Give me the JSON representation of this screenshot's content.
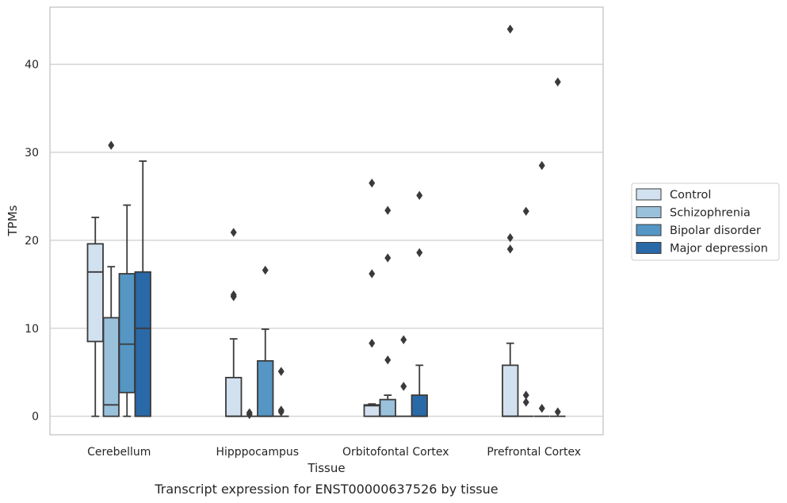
{
  "caption": "Transcript expression for ENST00000637526 by tissue",
  "chart_data": {
    "type": "box",
    "title": "",
    "xlabel": "Tissue",
    "ylabel": "TPMs",
    "ylim": [
      -2.1,
      46.5
    ],
    "yticks": [
      0,
      10,
      20,
      30,
      40
    ],
    "grid": true,
    "legend_position": "right",
    "categories": [
      "Cerebellum",
      "Hipppocampus",
      "Orbitofontal Cortex",
      "Prefrontal Cortex"
    ],
    "series": [
      {
        "name": "Control",
        "color": "#d1e1f0",
        "boxes": [
          {
            "whislo": 0,
            "q1": 8.5,
            "med": 16.4,
            "q3": 19.6,
            "whishi": 22.6,
            "fliers": []
          },
          {
            "whislo": 0,
            "q1": 0,
            "med": 0,
            "q3": 4.4,
            "whishi": 8.8,
            "fliers": [
              13.6,
              13.8,
              20.9
            ]
          },
          {
            "whislo": 0,
            "q1": 0,
            "med": 1.2,
            "q3": 1.3,
            "whishi": 1.4,
            "fliers": [
              8.3,
              16.2,
              26.5
            ]
          },
          {
            "whislo": 0,
            "q1": 0,
            "med": 0,
            "q3": 5.8,
            "whishi": 8.3,
            "fliers": [
              19.0,
              20.3,
              44.0
            ]
          }
        ]
      },
      {
        "name": "Schizophrenia",
        "color": "#9ac1dc",
        "boxes": [
          {
            "whislo": 0,
            "q1": 0,
            "med": 1.3,
            "q3": 11.2,
            "whishi": 17.0,
            "fliers": [
              30.8
            ]
          },
          {
            "whislo": 0,
            "q1": 0,
            "med": 0,
            "q3": 0,
            "whishi": 0,
            "fliers": [
              0.2,
              0.4
            ]
          },
          {
            "whislo": 0,
            "q1": 0,
            "med": 0,
            "q3": 1.9,
            "whishi": 2.4,
            "fliers": [
              6.4,
              18.0,
              23.4
            ]
          },
          {
            "whislo": 0,
            "q1": 0,
            "med": 0,
            "q3": 0,
            "whishi": 0,
            "fliers": [
              1.6,
              2.4,
              23.3
            ]
          }
        ]
      },
      {
        "name": "Bipolar disorder",
        "color": "#5596c4",
        "boxes": [
          {
            "whislo": 0,
            "q1": 2.7,
            "med": 8.2,
            "q3": 16.2,
            "whishi": 24.0,
            "fliers": []
          },
          {
            "whislo": 0,
            "q1": 0,
            "med": 0,
            "q3": 6.3,
            "whishi": 9.9,
            "fliers": [
              16.6
            ]
          },
          {
            "whislo": 0,
            "q1": 0,
            "med": 0,
            "q3": 0,
            "whishi": 0,
            "fliers": [
              3.4,
              8.7
            ]
          },
          {
            "whislo": 0,
            "q1": 0,
            "med": 0,
            "q3": 0,
            "whishi": 0,
            "fliers": [
              0.9,
              28.5
            ]
          }
        ]
      },
      {
        "name": "Major depression",
        "color": "#2a69a8",
        "boxes": [
          {
            "whislo": 0,
            "q1": 0,
            "med": 10.0,
            "q3": 16.4,
            "whishi": 29.0,
            "fliers": []
          },
          {
            "whislo": 0,
            "q1": 0,
            "med": 0,
            "q3": 0,
            "whishi": 0,
            "fliers": [
              0.5,
              0.7,
              5.1
            ]
          },
          {
            "whislo": 0,
            "q1": 0,
            "med": 0,
            "q3": 2.4,
            "whishi": 5.8,
            "fliers": [
              18.6,
              25.1
            ]
          },
          {
            "whislo": 0,
            "q1": 0,
            "med": 0,
            "q3": 0,
            "whishi": 0,
            "fliers": [
              0.5,
              38.0
            ]
          }
        ]
      }
    ]
  }
}
